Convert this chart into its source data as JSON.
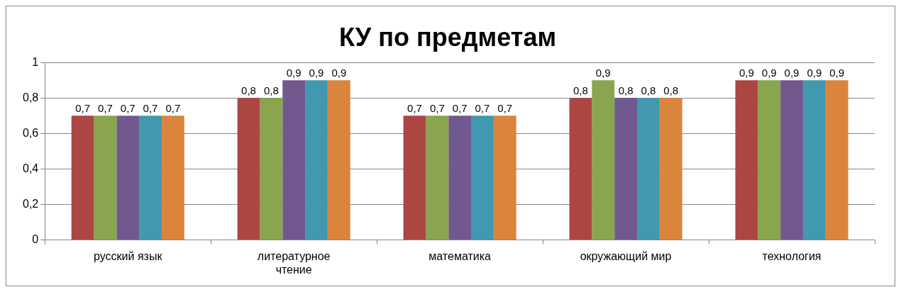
{
  "chart_data": {
    "type": "bar",
    "title": "КУ по предметам",
    "categories": [
      "русский язык",
      "литературное чтение",
      "математика",
      "окружающий мир",
      "технология"
    ],
    "series": [
      {
        "color": "#ab4643",
        "values": [
          0.7,
          0.8,
          0.7,
          0.8,
          0.9
        ],
        "value_labels": [
          "0,7",
          "0,8",
          "0,7",
          "0,8",
          "0,9"
        ]
      },
      {
        "color": "#89a54e",
        "values": [
          0.7,
          0.8,
          0.7,
          0.9,
          0.9
        ],
        "value_labels": [
          "0,7",
          "0,8",
          "0,7",
          "0,9",
          "0,9"
        ]
      },
      {
        "color": "#71588f",
        "values": [
          0.7,
          0.9,
          0.7,
          0.8,
          0.9
        ],
        "value_labels": [
          "0,7",
          "0,9",
          "0,7",
          "0,8",
          "0,9"
        ]
      },
      {
        "color": "#4198af",
        "values": [
          0.7,
          0.9,
          0.7,
          0.8,
          0.9
        ],
        "value_labels": [
          "0,7",
          "0,9",
          "0,7",
          "0,8",
          "0,9"
        ]
      },
      {
        "color": "#db843d",
        "values": [
          0.7,
          0.9,
          0.7,
          0.8,
          0.9
        ],
        "value_labels": [
          "0,7",
          "0,9",
          "0,7",
          "0,8",
          "0,9"
        ]
      }
    ],
    "ylim": [
      0,
      1
    ],
    "yticks": [
      0,
      {
        "value": 0.2,
        "label": "0,2"
      },
      {
        "value": 0.4,
        "label": "0,4"
      },
      {
        "value": 0.6,
        "label": "0,6"
      },
      {
        "value": 0.8,
        "label": "0,8"
      },
      1
    ],
    "grid": "y",
    "legend": false
  }
}
